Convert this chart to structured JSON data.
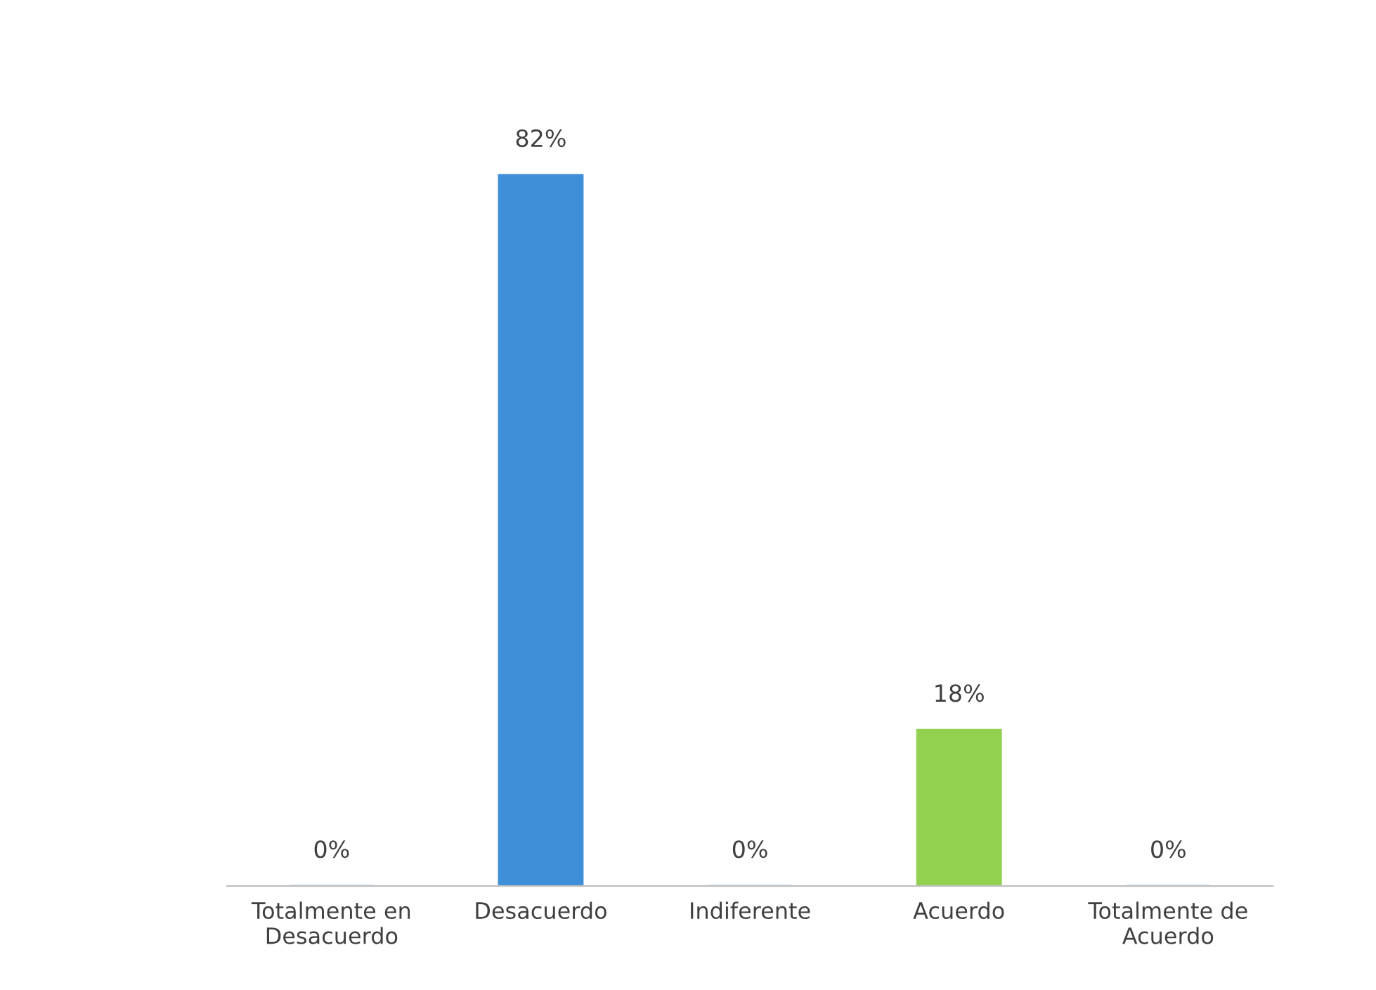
{
  "chart_data": {
    "type": "bar",
    "categories": [
      "Totalmente en\nDesacuerdo",
      "Desacuerdo",
      "Indiferente",
      "Acuerdo",
      "Totalmente de\nAcuerdo"
    ],
    "values": [
      0,
      82,
      0,
      18,
      0
    ],
    "colors": [
      "#3f8fd8",
      "#3f8fd8",
      "#3f8fd8",
      "#92d050",
      "#3f8fd8"
    ],
    "value_labels": [
      "0%",
      "82%",
      "0%",
      "18%",
      "0%"
    ],
    "grid": false,
    "legend": false
  }
}
